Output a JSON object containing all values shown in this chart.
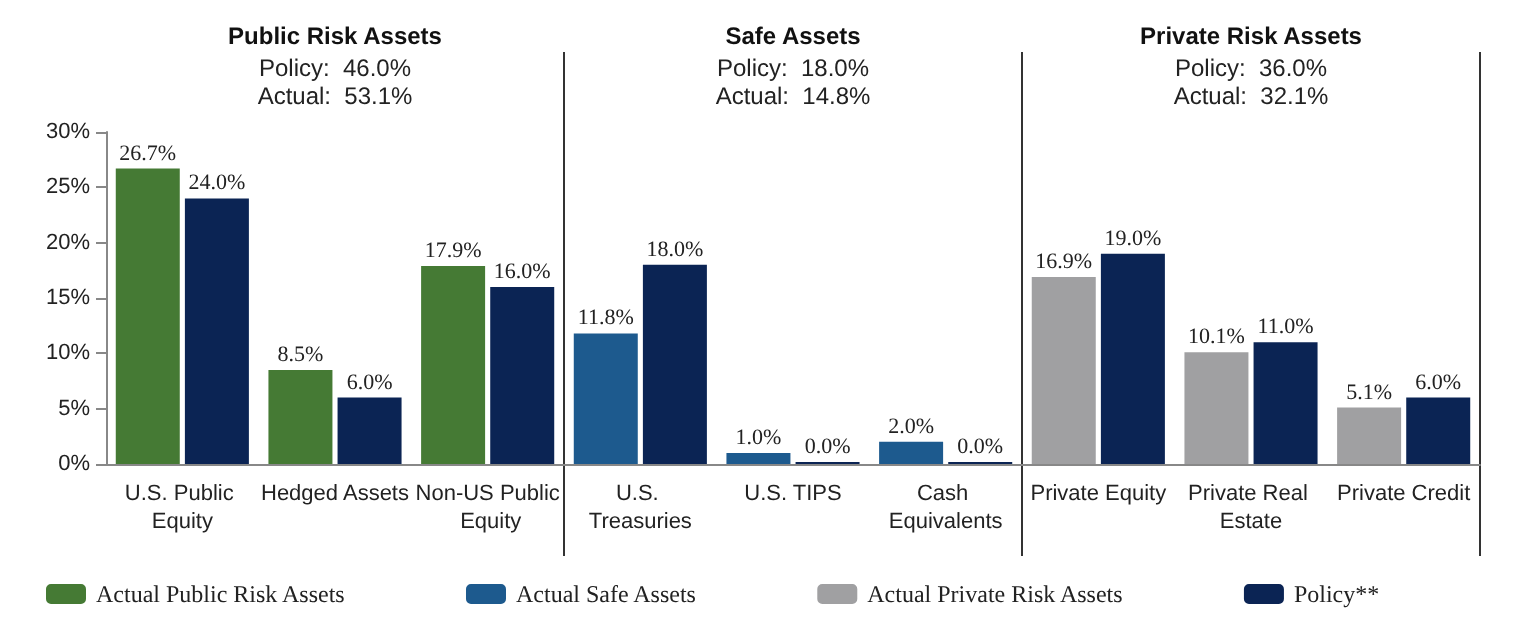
{
  "chart_data": {
    "type": "bar",
    "categories": [
      "U.S. Public Equity",
      "Hedged Assets",
      "Non-US Public Equity",
      "U.S. Treasuries",
      "U.S. TIPS",
      "Cash Equivalents",
      "Private Equity",
      "Private Real Estate",
      "Private Credit"
    ],
    "series": [
      {
        "name": "Actual Public Risk Assets",
        "color": "#457a34",
        "values": [
          26.7,
          8.5,
          17.9,
          null,
          null,
          null,
          null,
          null,
          null
        ],
        "value_labels": [
          "26.7%",
          "8.5%",
          "17.9%",
          null,
          null,
          null,
          null,
          null,
          null
        ]
      },
      {
        "name": "Actual Safe Assets",
        "color": "#1d5a8e",
        "values": [
          null,
          null,
          null,
          11.8,
          1.0,
          2.0,
          null,
          null,
          null
        ],
        "value_labels": [
          null,
          null,
          null,
          "11.8%",
          "1.0%",
          "2.0%",
          null,
          null,
          null
        ]
      },
      {
        "name": "Actual Private Risk Assets",
        "color": "#a0a0a2",
        "values": [
          null,
          null,
          null,
          null,
          null,
          null,
          16.9,
          10.1,
          5.1
        ],
        "value_labels": [
          null,
          null,
          null,
          null,
          null,
          null,
          "16.9%",
          "10.1%",
          "5.1%"
        ]
      },
      {
        "name": "Policy**",
        "color": "#0b2454",
        "values": [
          24.0,
          6.0,
          16.0,
          18.0,
          0.0,
          0.0,
          19.0,
          11.0,
          6.0
        ],
        "value_labels": [
          "24.0%",
          "6.0%",
          "16.0%",
          "18.0%",
          "0.0%",
          "0.0%",
          "19.0%",
          "11.0%",
          "6.0%"
        ]
      }
    ],
    "ylim": [
      0,
      30
    ],
    "yticks": [
      {
        "value": 0,
        "label": "0%"
      },
      {
        "value": 5,
        "label": "5%"
      },
      {
        "value": 10,
        "label": "10%"
      },
      {
        "value": 15,
        "label": "15%"
      },
      {
        "value": 20,
        "label": "20%"
      },
      {
        "value": 25,
        "label": "25%"
      },
      {
        "value": 30,
        "label": "30%"
      }
    ],
    "annotations": [
      "Public Risk Assets\nPolicy:  46.0%\nActual:  53.1%",
      "Safe Assets\nPolicy:  18.0%\nActual:  14.8%",
      "Private Risk Assets\nPolicy:  36.0%\nActual:  32.1%"
    ],
    "grid": false,
    "legend": "bottom"
  }
}
